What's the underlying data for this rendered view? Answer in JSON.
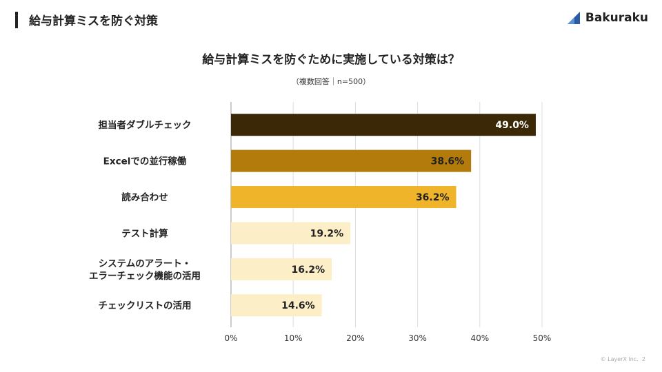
{
  "header": {
    "title": "給与計算ミスを防ぐ対策",
    "logo_text": "Bakuraku"
  },
  "footer": {
    "copyright": "© LayerX Inc.",
    "page_number": "2"
  },
  "chart_data": {
    "type": "bar",
    "orientation": "horizontal",
    "title": "給与計算ミスを防ぐために実施している対策は？",
    "subtitle": "（複数回答｜n=500）",
    "categories": [
      "担当者ダブルチェック",
      "Excelでの並行稼働",
      "読み合わせ",
      "テスト計算",
      "システムのアラート・\nエラーチェック機能の活用",
      "チェックリストの活用"
    ],
    "values": [
      49.0,
      38.6,
      36.2,
      19.2,
      16.2,
      14.6
    ],
    "data_labels": [
      "49.0%",
      "38.6%",
      "36.2%",
      "19.2%",
      "16.2%",
      "14.6%"
    ],
    "bar_colors": [
      "#3b2806",
      "#b27b0c",
      "#f0b42a",
      "#fcefc8",
      "#fcefc8",
      "#fcefc8"
    ],
    "label_colors": [
      "#ffffff",
      "#222222",
      "#222222",
      "#222222",
      "#222222",
      "#222222"
    ],
    "xlim": [
      0,
      50
    ],
    "x_ticks": [
      "0%",
      "10%",
      "20%",
      "30%",
      "40%",
      "50%"
    ],
    "grid": true,
    "legend": "none"
  }
}
